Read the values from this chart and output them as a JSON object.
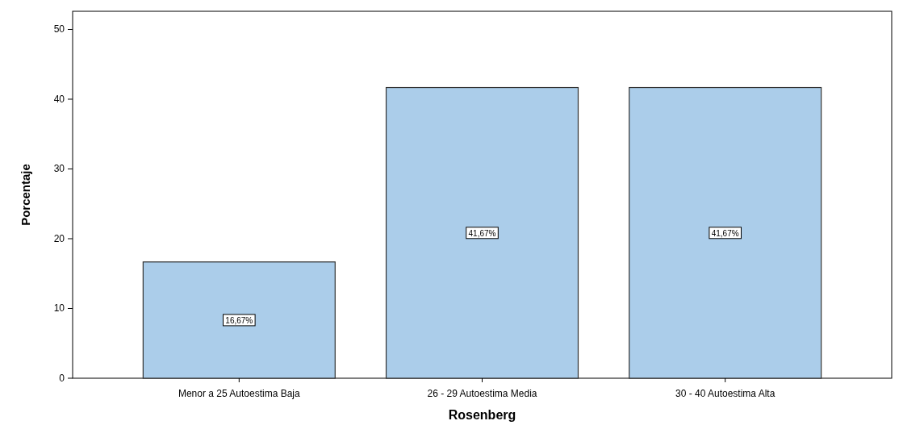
{
  "chart_data": {
    "type": "bar",
    "xlabel": "Rosenberg",
    "ylabel": "Porcentaje",
    "categories": [
      "Menor a 25 Autoestima Baja",
      "26 - 29 Autoestima Media",
      "30 - 40 Autoestima Alta"
    ],
    "values": [
      16.67,
      41.67,
      41.67
    ],
    "value_labels": [
      "16,67%",
      "41,67%",
      "41,67%"
    ],
    "color": "#abcdea",
    "ylim": [
      0,
      52.6
    ],
    "yticks": [
      0,
      10,
      20,
      30,
      40,
      50
    ],
    "grid": false
  }
}
